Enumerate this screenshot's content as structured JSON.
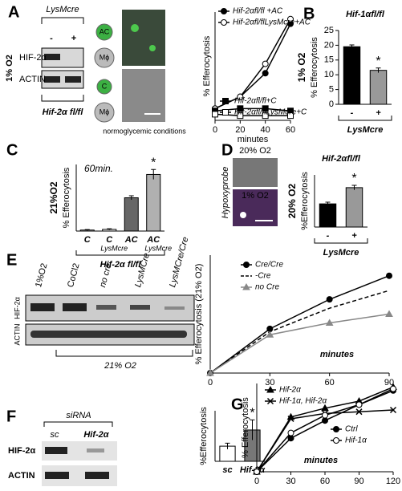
{
  "panel_labels": [
    "A",
    "B",
    "C",
    "D",
    "E",
    "F",
    "G"
  ],
  "panel_a": {
    "oxygen": "1% O2",
    "genotype_top": "LysMcre",
    "minus": "-",
    "plus": "+",
    "bands": [
      "HIF-2α",
      "ACTIN"
    ],
    "genotype_bottom": "Hif-2α fl/fl",
    "image_labels": [
      "AC",
      "Mϕ",
      "C",
      "Mϕ"
    ],
    "image_caption": "normoglycemic conditions"
  },
  "panel_d": {
    "images": [
      "20% O2",
      "1% O2"
    ],
    "stain": "Hypoxyprobe"
  },
  "panel_e": {
    "lanes": [
      "1%O2",
      "CoCl2",
      "no cre",
      "LysMCre",
      "LysMCre/Cre"
    ],
    "bands": [
      "HIF-2α",
      "ACTIN"
    ],
    "condition": "21% O2"
  },
  "panel_f": {
    "treatment": "siRNA",
    "lanes": [
      "sc",
      "Hif-2α"
    ],
    "bands": [
      "HIF-2α",
      "ACTIN"
    ]
  },
  "chart_data": [
    {
      "type": "line",
      "xlabel": "minutes",
      "ylabel": "% Efferocytosis",
      "x": [
        0,
        20,
        40,
        60
      ],
      "xlim": [
        0,
        60
      ],
      "xticks": [
        0,
        20,
        40,
        60
      ],
      "ylim": [
        0,
        23
      ],
      "series": [
        {
          "name": "Hif-2αfl/fl +AC",
          "color": "#000000",
          "marker": "circle",
          "legend_corner": "top-left",
          "values": [
            2.5,
            5,
            10,
            20.5
          ]
        },
        {
          "name": "Hif-2αfl/flLysMcre+AC",
          "color": "#000000",
          "marker": "circle-open",
          "legend_corner": "top-left",
          "values": [
            2.5,
            5,
            12,
            21.5
          ]
        },
        {
          "name": "Hif-2αfl/fl+C",
          "color": "#000000",
          "marker": "square",
          "legend_corner": "bottom-left",
          "values": [
            2,
            2.5,
            2.5,
            2
          ]
        },
        {
          "name": "Hif-2αfl/flLysMcre+C",
          "color": "#000000",
          "marker": "square-open",
          "legend_corner": "bottom-left",
          "values": [
            1.3,
            1,
            1,
            1
          ]
        }
      ]
    },
    {
      "type": "bar",
      "title": "Hif-1αfl/fl",
      "condition": "1% O2",
      "ylabel": "% Efferocytosis",
      "categories": [
        "-",
        "+"
      ],
      "group_label": "LysMcre",
      "values": [
        19.5,
        11.5
      ],
      "errors": [
        0.6,
        0.8
      ],
      "colors": [
        "#000000",
        "#999999"
      ],
      "ylim": [
        0,
        25
      ],
      "yticks": [
        0,
        5,
        10,
        15,
        20,
        25
      ],
      "annotation": "*"
    },
    {
      "type": "bar",
      "condition": "21%O2",
      "condition_color": "#7b3f9e",
      "ylabel": "% Efferocytosis",
      "note": "60min.",
      "categories": [
        "C",
        "C",
        "AC",
        "AC"
      ],
      "sublabels": [
        null,
        "LysMcre",
        null,
        "LysMcre"
      ],
      "group_label": "Hif-2α fl/fl",
      "values": [
        0.6,
        1,
        20,
        34
      ],
      "errors": [
        0.3,
        0.4,
        1.2,
        3
      ],
      "colors": [
        "#ffffff",
        "#ffffff",
        "#666666",
        "#b0b0b0"
      ],
      "ylim": [
        0,
        40
      ],
      "annotation": "*"
    },
    {
      "type": "bar",
      "title": "Hif-2αfl/fl",
      "condition": "20% O2",
      "ylabel": "%Efferocytosis",
      "categories": [
        "-",
        "+"
      ],
      "group_label": "LysMcre",
      "values": [
        20,
        34
      ],
      "errors": [
        1.5,
        2
      ],
      "colors": [
        "#000000",
        "#999999"
      ],
      "ylim": [
        0,
        45
      ],
      "annotation": "*"
    },
    {
      "type": "line",
      "xlabel": "minutes",
      "ylabel": "% Efferocytosis (21% O2)",
      "x": [
        0,
        30,
        60,
        90
      ],
      "xlim": [
        0,
        90
      ],
      "xticks": [
        0,
        30,
        60,
        90
      ],
      "ylim": [
        0,
        40
      ],
      "series": [
        {
          "name": "Cre/Cre",
          "color": "#000000",
          "marker": "circle",
          "legend_corner": "top-left",
          "values": [
            0,
            15,
            25,
            33
          ]
        },
        {
          "name": "-Cre",
          "color": "#000000",
          "marker": "none",
          "dash": true,
          "legend_corner": "top-left",
          "values": [
            0,
            14,
            22,
            28
          ]
        },
        {
          "name": "no Cre",
          "color": "#888888",
          "marker": "triangle",
          "legend_corner": "top-left",
          "values": [
            0,
            13,
            17,
            20
          ]
        }
      ]
    },
    {
      "type": "bar",
      "ylabel": "%Efferocytosis",
      "categories": [
        "sc",
        "Hif-2α"
      ],
      "values": [
        7.5,
        15.5
      ],
      "errors": [
        1.5,
        5
      ],
      "colors": [
        "#ffffff",
        "#777777"
      ],
      "ylim": [
        0,
        25
      ],
      "annotation": "*"
    },
    {
      "type": "line",
      "xlabel": "minutes",
      "ylabel": "% Efferocytosis",
      "x": [
        0,
        30,
        60,
        90,
        120
      ],
      "xlim": [
        0,
        120
      ],
      "xticks": [
        0,
        30,
        60,
        90,
        120
      ],
      "ylim": [
        0,
        50
      ],
      "series": [
        {
          "name": "Hif-2α",
          "color": "#000000",
          "marker": "triangle",
          "legend_corner": "top-left",
          "values": [
            0,
            31,
            36,
            40,
            48
          ]
        },
        {
          "name": "Hif-1α, Hif-2α",
          "color": "#000000",
          "marker": "x",
          "legend_corner": "top-left",
          "values": [
            0,
            30,
            33,
            34,
            35
          ]
        },
        {
          "name": "Ctrl",
          "color": "#000000",
          "marker": "circle",
          "legend_corner": "bottom-right",
          "values": [
            0,
            19,
            29,
            38,
            46
          ]
        },
        {
          "name": "Hif-1α",
          "color": "#000000",
          "marker": "circle-open",
          "legend_corner": "bottom-right",
          "values": [
            0,
            22,
            32,
            38,
            47
          ]
        }
      ]
    }
  ]
}
